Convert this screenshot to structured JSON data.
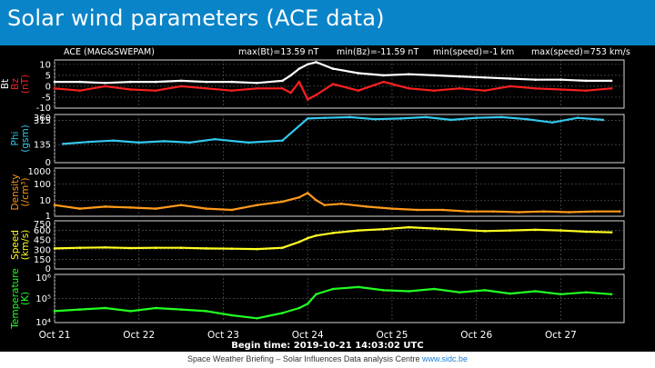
{
  "slide": {
    "title": "Solar wind parameters (ACE data)",
    "footer_text": "Space Weather Briefing – Solar Influences Data analysis Centre",
    "footer_link": "www.sidc.be"
  },
  "colors": {
    "title_bar": "#0a84c8",
    "bt": "#ffffff",
    "bz": "#ff2020",
    "phi": "#33c8ee",
    "density": "#ff9a1a",
    "speed": "#ffff22",
    "temperature": "#22ff22"
  },
  "chart_data": {
    "type": "line",
    "header": {
      "source": "ACE (MAG&SWEPAM)",
      "max_bt": "max(Bt)=13.59 nT",
      "min_bz": "min(Bz)=-11.59 nT",
      "min_speed": "min(speed)=-1 km",
      "max_speed": "max(speed)=753 km/s"
    },
    "x_ticks": [
      "Oct 21",
      "Oct 22",
      "Oct 23",
      "Oct 24",
      "Oct 25",
      "Oct 26",
      "Oct 27"
    ],
    "x_range_days": [
      0,
      6.75
    ],
    "begin_time": "Begin time: 2019-10-21 14:03:02 UTC",
    "panels": [
      {
        "id": "field",
        "ylabel_lines": [
          "Bz",
          "(nT)"
        ],
        "ylabel_extra": "Bt",
        "scale": "linear",
        "ylim": [
          -10,
          12
        ],
        "ticks": [
          "10",
          "5",
          "0",
          "-5",
          "-10"
        ],
        "tick_values": [
          10,
          5,
          0,
          -5,
          -10
        ],
        "series": [
          {
            "name": "Bt",
            "color": "#ffffff",
            "x": [
              0,
              0.3,
              0.6,
              0.9,
              1.2,
              1.5,
              1.8,
              2.1,
              2.4,
              2.7,
              2.8,
              2.9,
              3.0,
              3.1,
              3.3,
              3.6,
              3.9,
              4.2,
              4.5,
              4.8,
              5.1,
              5.4,
              5.7,
              6.0,
              6.3,
              6.6
            ],
            "y": [
              2,
              2,
              1.5,
              2,
              2,
              2.5,
              2,
              2,
              1.5,
              2.5,
              5,
              8,
              10,
              11,
              8,
              6,
              5,
              5.5,
              5,
              4.5,
              4,
              3.5,
              3,
              3,
              2.5,
              2.5
            ]
          },
          {
            "name": "Bz",
            "color": "#ff2020",
            "x": [
              0,
              0.3,
              0.6,
              0.9,
              1.2,
              1.5,
              1.8,
              2.1,
              2.4,
              2.7,
              2.8,
              2.9,
              3.0,
              3.1,
              3.3,
              3.6,
              3.9,
              4.2,
              4.5,
              4.8,
              5.1,
              5.4,
              5.7,
              6.0,
              6.3,
              6.6
            ],
            "y": [
              -1,
              -2,
              0,
              -1.5,
              -2,
              0,
              -1,
              -2,
              -1,
              -1,
              -3,
              2,
              -6,
              -4,
              1,
              -2,
              2,
              -1,
              -2,
              -1,
              -2,
              0,
              -1,
              -1.5,
              -2,
              -1
            ]
          }
        ]
      },
      {
        "id": "phi",
        "ylabel_lines": [
          "Phi",
          "(gsm)"
        ],
        "scale": "linear",
        "ylim": [
          0,
          360
        ],
        "ticks": [
          "360",
          "315",
          "135",
          "0"
        ],
        "tick_values": [
          360,
          315,
          135,
          0
        ],
        "series": [
          {
            "name": "Phi",
            "color": "#33c8ee",
            "x": [
              0.1,
              0.4,
              0.7,
              1.0,
              1.3,
              1.6,
              1.9,
              2.3,
              2.7,
              3.0,
              3.2,
              3.5,
              3.8,
              4.1,
              4.4,
              4.7,
              5.0,
              5.3,
              5.6,
              5.9,
              6.2,
              6.5
            ],
            "y": [
              140,
              155,
              165,
              150,
              160,
              150,
              175,
              150,
              165,
              330,
              335,
              340,
              325,
              330,
              340,
              320,
              335,
              340,
              325,
              300,
              335,
              320
            ]
          }
        ]
      },
      {
        "id": "density",
        "ylabel_lines": [
          "Density",
          "(/cm³)"
        ],
        "scale": "log",
        "ylim": [
          1,
          1000
        ],
        "ticks": [
          "1000",
          "100",
          "10",
          "1"
        ],
        "tick_values": [
          1000,
          100,
          10,
          1
        ],
        "series": [
          {
            "name": "Density",
            "color": "#ff9a1a",
            "x": [
              0,
              0.3,
              0.6,
              0.9,
              1.2,
              1.5,
              1.8,
              2.1,
              2.4,
              2.7,
              2.9,
              3.0,
              3.1,
              3.2,
              3.4,
              3.7,
              4.0,
              4.3,
              4.6,
              4.9,
              5.2,
              5.5,
              5.8,
              6.1,
              6.4,
              6.7
            ],
            "y": [
              5,
              3,
              4,
              3.5,
              3,
              5,
              3,
              2.5,
              5,
              8,
              15,
              28,
              10,
              5,
              6,
              4,
              3,
              2.5,
              2.5,
              2,
              2,
              1.8,
              2,
              1.8,
              2,
              2
            ]
          }
        ]
      },
      {
        "id": "speed",
        "ylabel_lines": [
          "Speed",
          "(km/s)"
        ],
        "scale": "linear",
        "ylim": [
          0,
          750
        ],
        "ticks": [
          "750",
          "600",
          "450",
          "300",
          "150",
          "0"
        ],
        "tick_values": [
          750,
          600,
          450,
          300,
          150,
          0
        ],
        "series": [
          {
            "name": "Speed",
            "color": "#ffff22",
            "x": [
              0,
              0.3,
              0.6,
              0.9,
              1.2,
              1.5,
              1.8,
              2.1,
              2.4,
              2.7,
              2.9,
              3.0,
              3.1,
              3.3,
              3.6,
              3.9,
              4.2,
              4.5,
              4.8,
              5.1,
              5.4,
              5.7,
              6.0,
              6.3,
              6.6
            ],
            "y": [
              320,
              330,
              335,
              325,
              330,
              330,
              320,
              315,
              310,
              330,
              420,
              480,
              520,
              560,
              600,
              620,
              650,
              630,
              610,
              590,
              600,
              610,
              600,
              580,
              570
            ]
          }
        ]
      },
      {
        "id": "temperature",
        "ylabel_lines": [
          "Temperature",
          "(K)"
        ],
        "scale": "log",
        "ylim": [
          10000,
          1000000
        ],
        "ticks": [
          "10⁶",
          "10⁵",
          "10⁴"
        ],
        "tick_values": [
          1000000,
          100000,
          10000
        ],
        "series": [
          {
            "name": "Temperature",
            "color": "#22ff22",
            "x": [
              0,
              0.3,
              0.6,
              0.9,
              1.2,
              1.5,
              1.8,
              2.1,
              2.4,
              2.7,
              2.9,
              3.0,
              3.1,
              3.3,
              3.6,
              3.9,
              4.2,
              4.5,
              4.8,
              5.1,
              5.4,
              5.7,
              6.0,
              6.3,
              6.6
            ],
            "y": [
              30000,
              35000,
              40000,
              30000,
              40000,
              35000,
              30000,
              20000,
              15000,
              25000,
              40000,
              60000,
              150000,
              250000,
              300000,
              220000,
              200000,
              250000,
              180000,
              220000,
              160000,
              200000,
              150000,
              180000,
              150000
            ]
          }
        ]
      }
    ]
  }
}
